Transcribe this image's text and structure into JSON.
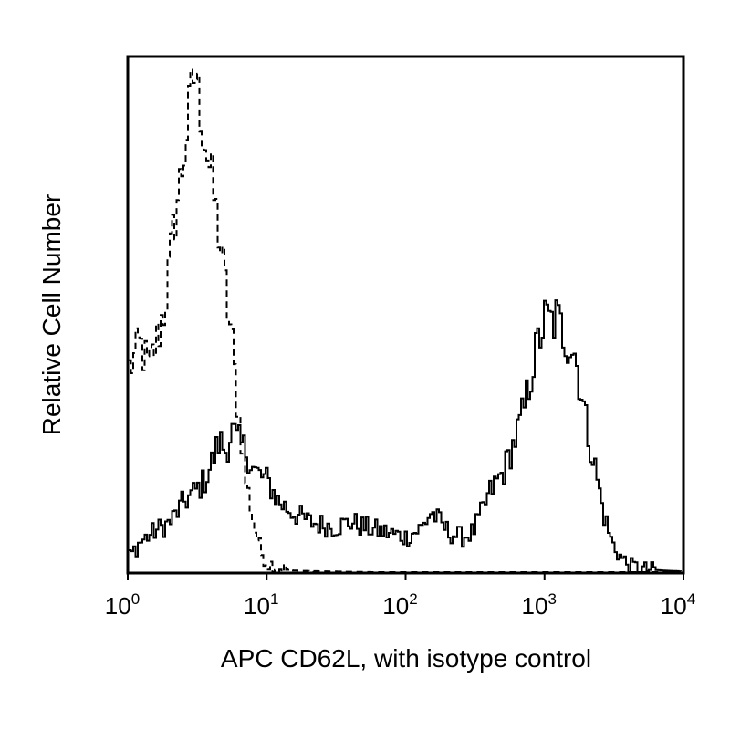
{
  "chart_data": {
    "type": "line",
    "xlabel": "APC CD62L, with isotype control",
    "ylabel": "Relative Cell Number",
    "x_scale": "log",
    "xlim": [
      1,
      10000
    ],
    "ylim": [
      0,
      100
    ],
    "grid": false,
    "legend": "none",
    "x_ticks": [
      {
        "base": "10",
        "exp": "0",
        "value": 1
      },
      {
        "base": "10",
        "exp": "1",
        "value": 10
      },
      {
        "base": "10",
        "exp": "2",
        "value": 100
      },
      {
        "base": "10",
        "exp": "3",
        "value": 1000
      },
      {
        "base": "10",
        "exp": "4",
        "value": 10000
      }
    ],
    "series": [
      {
        "style": "dashed",
        "color": "#000000",
        "x": [
          1,
          1.1,
          1.2,
          1.4,
          1.6,
          1.8,
          2.0,
          2.2,
          2.5,
          2.8,
          3.0,
          3.3,
          3.6,
          4.0,
          4.5,
          5.0,
          5.5,
          6.0,
          6.5,
          7.0,
          8.0,
          9.0,
          10,
          12,
          15,
          20,
          30,
          50,
          100,
          300,
          1000,
          10000
        ],
        "y": [
          40,
          42,
          45,
          40,
          46,
          52,
          62,
          72,
          82,
          94,
          99,
          90,
          84,
          76,
          66,
          55,
          46,
          34,
          26,
          18,
          9,
          4,
          2,
          1,
          0.5,
          0.4,
          0.3,
          0.2,
          0.1,
          0.1,
          0.1,
          0
        ]
      },
      {
        "style": "solid",
        "color": "#000000",
        "x": [
          1,
          1.2,
          1.5,
          2,
          2.5,
          3,
          3.5,
          4,
          4.5,
          5,
          5.5,
          6,
          7,
          8,
          10,
          12,
          15,
          20,
          30,
          40,
          50,
          70,
          100,
          130,
          150,
          200,
          250,
          300,
          350,
          400,
          500,
          600,
          700,
          800,
          900,
          1000,
          1100,
          1200,
          1400,
          1600,
          1800,
          2000,
          2300,
          2600,
          3000,
          3500,
          4000,
          5000,
          7000,
          10000
        ],
        "y": [
          3,
          6,
          8,
          10,
          14,
          16,
          18,
          22,
          26,
          24,
          28,
          26,
          24,
          20,
          18,
          14,
          12,
          10,
          9,
          10,
          9,
          8,
          7,
          9,
          12,
          8,
          7,
          8,
          12,
          16,
          20,
          26,
          32,
          40,
          46,
          50,
          49,
          50,
          46,
          44,
          36,
          28,
          20,
          12,
          6,
          3,
          1.5,
          0.8,
          0.5,
          0.3
        ]
      }
    ]
  }
}
